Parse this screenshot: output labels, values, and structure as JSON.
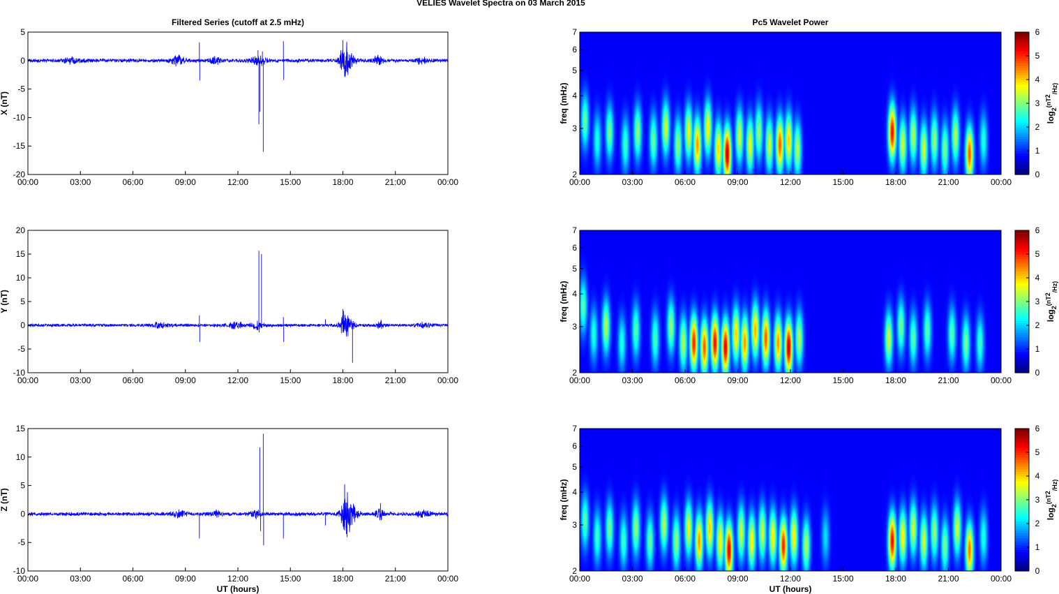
{
  "figure": {
    "title": "VELIES Wavelet Spectra on 03 March     2015"
  },
  "chart_data": [
    {
      "type": "line",
      "panel": "filtered-x",
      "title": "Filtered Series (cutoff at 2.5 mHz)",
      "ylabel": "X (nT)",
      "xlabel": "",
      "xticks": [
        "00:00",
        "03:00",
        "06:00",
        "09:00",
        "12:00",
        "15:00",
        "18:00",
        "21:00",
        "00:00"
      ],
      "xlim": [
        0,
        24
      ],
      "ylim": [
        -20,
        5
      ],
      "yticks": [
        -20,
        -15,
        -10,
        -5,
        0,
        5
      ],
      "color": "#0000ff",
      "baseline_amplitude": 0.35,
      "bursts": [
        [
          2.5,
          0.5,
          0.4
        ],
        [
          8.6,
          0.4,
          0.8
        ],
        [
          10.7,
          0.3,
          0.6
        ],
        [
          13.2,
          0.4,
          0.8
        ],
        [
          18.1,
          0.25,
          2.5
        ],
        [
          18.3,
          0.4,
          1.2
        ],
        [
          20.0,
          0.3,
          0.7
        ],
        [
          22.5,
          0.4,
          0.5
        ]
      ],
      "spikes": [
        [
          9.8,
          3.2
        ],
        [
          9.82,
          -3.5
        ],
        [
          13.15,
          1.8
        ],
        [
          13.2,
          -11.2
        ],
        [
          13.25,
          -9.0
        ],
        [
          13.4,
          1.6
        ],
        [
          13.45,
          -16.0
        ],
        [
          14.6,
          3.4
        ],
        [
          14.62,
          -3.4
        ],
        [
          18.0,
          3.6
        ],
        [
          18.15,
          -1.9
        ]
      ]
    },
    {
      "type": "line",
      "panel": "filtered-y",
      "title": "",
      "ylabel": "Y (nT)",
      "xlabel": "",
      "xticks": [
        "00:00",
        "03:00",
        "06:00",
        "09:00",
        "12:00",
        "15:00",
        "18:00",
        "21:00",
        "00:00"
      ],
      "xlim": [
        0,
        24
      ],
      "ylim": [
        -10,
        20
      ],
      "yticks": [
        -10,
        -5,
        0,
        5,
        10,
        15,
        20
      ],
      "color": "#0000ff",
      "baseline_amplitude": 0.35,
      "bursts": [
        [
          7.5,
          0.5,
          0.5
        ],
        [
          11.9,
          0.4,
          0.7
        ],
        [
          13.1,
          0.3,
          0.8
        ],
        [
          18.1,
          0.25,
          2.2
        ],
        [
          18.3,
          0.4,
          1.0
        ],
        [
          20.1,
          0.2,
          0.9
        ],
        [
          22.6,
          0.4,
          0.5
        ]
      ],
      "spikes": [
        [
          9.8,
          2.1
        ],
        [
          9.82,
          -3.5
        ],
        [
          13.2,
          15.7
        ],
        [
          13.22,
          -1.5
        ],
        [
          13.35,
          15.0
        ],
        [
          14.6,
          1.7
        ],
        [
          14.62,
          -3.5
        ],
        [
          17.0,
          1.3
        ],
        [
          18.0,
          3.4
        ],
        [
          18.55,
          -7.9
        ]
      ]
    },
    {
      "type": "line",
      "panel": "filtered-z",
      "title": "",
      "ylabel": "Z (nT)",
      "xlabel": "UT (hours)",
      "xticks": [
        "00:00",
        "03:00",
        "06:00",
        "09:00",
        "12:00",
        "15:00",
        "18:00",
        "21:00",
        "00:00"
      ],
      "xlim": [
        0,
        24
      ],
      "ylim": [
        -10,
        15
      ],
      "yticks": [
        -10,
        -5,
        0,
        5,
        10,
        15
      ],
      "color": "#0000ff",
      "baseline_amplitude": 0.35,
      "bursts": [
        [
          8.6,
          0.4,
          0.6
        ],
        [
          10.7,
          0.3,
          0.5
        ],
        [
          13.0,
          0.3,
          0.7
        ],
        [
          18.2,
          0.3,
          3.0
        ],
        [
          18.45,
          0.4,
          1.5
        ],
        [
          20.1,
          0.2,
          1.0
        ],
        [
          22.6,
          0.4,
          0.5
        ]
      ],
      "spikes": [
        [
          9.8,
          -4.3
        ],
        [
          13.25,
          11.7
        ],
        [
          13.3,
          -3.0
        ],
        [
          13.45,
          14.1
        ],
        [
          13.47,
          -5.5
        ],
        [
          14.6,
          -4.3
        ],
        [
          17.0,
          -2.0
        ],
        [
          18.1,
          5.2
        ],
        [
          18.2,
          -3.5
        ],
        [
          20.15,
          1.9
        ]
      ]
    },
    {
      "type": "heatmap",
      "panel": "wavelet-x",
      "title": "Pc5 Wavelet Power",
      "ylabel": "freq (mHz)",
      "xlabel": "",
      "xticks": [
        "00:00",
        "03:00",
        "06:00",
        "09:00",
        "12:00",
        "15:00",
        "18:00",
        "21:00",
        "00:00"
      ],
      "xlim": [
        0,
        24
      ],
      "ylim": [
        2,
        7
      ],
      "yscale": "log",
      "yticks": [
        2,
        3,
        4,
        5,
        6,
        7
      ],
      "colorbar": {
        "label": "log2(nT^2/Hz)",
        "ticks": [
          0,
          1,
          2,
          3,
          4,
          5,
          6
        ],
        "colormap": "jet"
      },
      "blobs": [
        [
          0.3,
          3.2,
          2.5
        ],
        [
          1.0,
          2.7,
          2.0
        ],
        [
          1.7,
          2.9,
          2.6
        ],
        [
          2.6,
          2.6,
          2.2
        ],
        [
          3.3,
          2.9,
          2.8
        ],
        [
          4.2,
          2.7,
          2.5
        ],
        [
          4.9,
          3.0,
          3.2
        ],
        [
          5.6,
          2.6,
          2.8
        ],
        [
          6.2,
          2.9,
          3.4
        ],
        [
          6.7,
          2.6,
          4.2
        ],
        [
          7.3,
          3.0,
          3.6
        ],
        [
          7.9,
          2.5,
          3.8
        ],
        [
          8.4,
          2.4,
          5.6
        ],
        [
          9.1,
          2.8,
          3.2
        ],
        [
          9.7,
          2.6,
          3.4
        ],
        [
          10.2,
          2.9,
          2.8
        ],
        [
          10.8,
          2.6,
          3.2
        ],
        [
          11.4,
          2.6,
          4.6
        ],
        [
          11.9,
          2.7,
          3.8
        ],
        [
          12.4,
          2.5,
          3.0
        ],
        [
          17.8,
          2.9,
          5.2
        ],
        [
          18.4,
          2.6,
          3.2
        ],
        [
          19.0,
          2.8,
          3.0
        ],
        [
          19.6,
          2.5,
          3.2
        ],
        [
          20.2,
          2.7,
          2.8
        ],
        [
          20.8,
          2.5,
          2.6
        ],
        [
          21.4,
          2.8,
          3.0
        ],
        [
          22.2,
          2.4,
          4.6
        ],
        [
          23.0,
          2.7,
          2.0
        ]
      ]
    },
    {
      "type": "heatmap",
      "panel": "wavelet-y",
      "title": "",
      "ylabel": "freq (mHz)",
      "xlabel": "",
      "xticks": [
        "00:00",
        "03:00",
        "06:00",
        "09:00",
        "12:00",
        "15:00",
        "18:00",
        "21:00",
        "00:00"
      ],
      "xlim": [
        0,
        24
      ],
      "ylim": [
        2,
        7
      ],
      "yscale": "log",
      "yticks": [
        2,
        3,
        4,
        5,
        6,
        7
      ],
      "colorbar": {
        "label": "log2(nT^2/Hz)",
        "ticks": [
          0,
          1,
          2,
          3,
          4,
          5,
          6
        ],
        "colormap": "jet"
      },
      "blobs": [
        [
          0.2,
          3.6,
          2.4
        ],
        [
          0.8,
          2.8,
          2.0
        ],
        [
          1.5,
          3.0,
          3.0
        ],
        [
          2.4,
          2.6,
          2.0
        ],
        [
          3.2,
          2.9,
          2.4
        ],
        [
          4.3,
          2.7,
          2.3
        ],
        [
          5.2,
          3.0,
          2.8
        ],
        [
          5.9,
          2.6,
          3.0
        ],
        [
          6.5,
          2.6,
          5.0
        ],
        [
          7.1,
          2.5,
          4.6
        ],
        [
          7.7,
          2.6,
          5.2
        ],
        [
          8.3,
          2.5,
          5.4
        ],
        [
          8.9,
          2.8,
          3.8
        ],
        [
          9.4,
          2.6,
          4.2
        ],
        [
          10.0,
          2.9,
          4.0
        ],
        [
          10.6,
          2.7,
          4.6
        ],
        [
          11.3,
          2.6,
          4.2
        ],
        [
          11.9,
          2.5,
          5.6
        ],
        [
          12.5,
          2.7,
          3.0
        ],
        [
          17.6,
          2.7,
          3.2
        ],
        [
          18.3,
          3.0,
          2.6
        ],
        [
          19.0,
          2.7,
          2.4
        ],
        [
          19.8,
          2.9,
          2.4
        ],
        [
          21.2,
          2.8,
          2.4
        ],
        [
          22.0,
          2.6,
          2.6
        ],
        [
          22.8,
          2.6,
          2.2
        ]
      ]
    },
    {
      "type": "heatmap",
      "panel": "wavelet-z",
      "title": "",
      "ylabel": "freq (mHz)",
      "xlabel": "UT (hours)",
      "xticks": [
        "00:00",
        "03:00",
        "06:00",
        "09:00",
        "12:00",
        "15:00",
        "18:00",
        "21:00",
        "00:00"
      ],
      "xlim": [
        0,
        24
      ],
      "ylim": [
        2,
        7
      ],
      "yscale": "log",
      "yticks": [
        2,
        3,
        4,
        5,
        6,
        7
      ],
      "colorbar": {
        "label": "log2(nT^2/Hz)",
        "ticks": [
          0,
          1,
          2,
          3,
          4,
          5,
          6
        ],
        "colormap": "jet"
      },
      "blobs": [
        [
          0.3,
          3.1,
          2.4
        ],
        [
          1.0,
          2.7,
          2.2
        ],
        [
          1.7,
          2.9,
          2.6
        ],
        [
          2.5,
          2.6,
          2.2
        ],
        [
          3.2,
          2.9,
          2.8
        ],
        [
          4.0,
          2.6,
          2.5
        ],
        [
          4.8,
          3.0,
          3.0
        ],
        [
          5.5,
          2.6,
          2.8
        ],
        [
          6.2,
          2.9,
          3.4
        ],
        [
          6.8,
          2.6,
          4.2
        ],
        [
          7.4,
          2.9,
          3.8
        ],
        [
          8.0,
          2.6,
          3.6
        ],
        [
          8.5,
          2.4,
          5.4
        ],
        [
          9.2,
          2.8,
          3.2
        ],
        [
          9.8,
          2.6,
          3.6
        ],
        [
          10.4,
          2.8,
          3.2
        ],
        [
          11.0,
          2.7,
          3.6
        ],
        [
          11.6,
          2.5,
          5.0
        ],
        [
          12.2,
          2.7,
          3.6
        ],
        [
          12.9,
          2.5,
          3.0
        ],
        [
          14.0,
          2.7,
          1.6
        ],
        [
          17.8,
          2.6,
          5.2
        ],
        [
          18.4,
          2.7,
          3.6
        ],
        [
          19.0,
          2.9,
          3.2
        ],
        [
          19.6,
          2.6,
          3.2
        ],
        [
          20.2,
          2.8,
          2.8
        ],
        [
          20.8,
          2.5,
          2.6
        ],
        [
          21.5,
          2.9,
          3.2
        ],
        [
          22.2,
          2.4,
          4.4
        ],
        [
          23.0,
          2.7,
          2.0
        ]
      ]
    }
  ]
}
